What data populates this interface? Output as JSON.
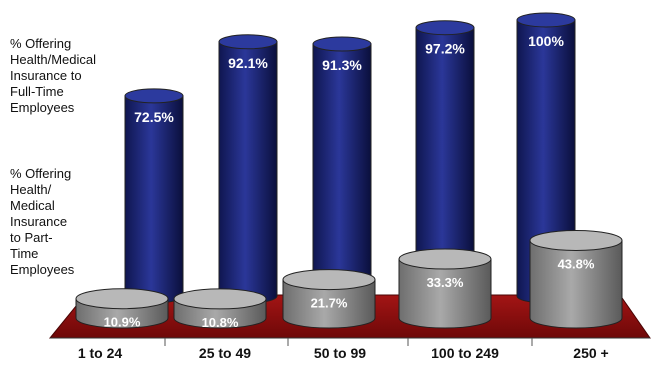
{
  "chart_data": {
    "type": "bar",
    "categories": [
      "1 to 24",
      "25 to 49",
      "50 to 99",
      "100 to 249",
      "250 +"
    ],
    "series": [
      {
        "name": "% Offering\nHealth/Medical\nInsurance to\nFull-Time\nEmployees",
        "values": [
          72.5,
          92.1,
          91.3,
          97.2,
          100
        ],
        "labels": [
          "72.5%",
          "92.1%",
          "91.3%",
          "97.2%",
          "100%"
        ],
        "color": "#1e2a7a"
      },
      {
        "name": "% Offering\nHealth/\nMedical\nInsurance\nto Part-\nTime\nEmployees",
        "values": [
          10.9,
          10.8,
          21.7,
          33.3,
          43.8
        ],
        "labels": [
          "10.9%",
          "10.8%",
          "21.7%",
          "33.3%",
          "43.8%"
        ],
        "color": "#8a8a8a"
      }
    ],
    "ylim": [
      0,
      100
    ],
    "floor_color": "#8b0d0d",
    "legend": "left"
  }
}
